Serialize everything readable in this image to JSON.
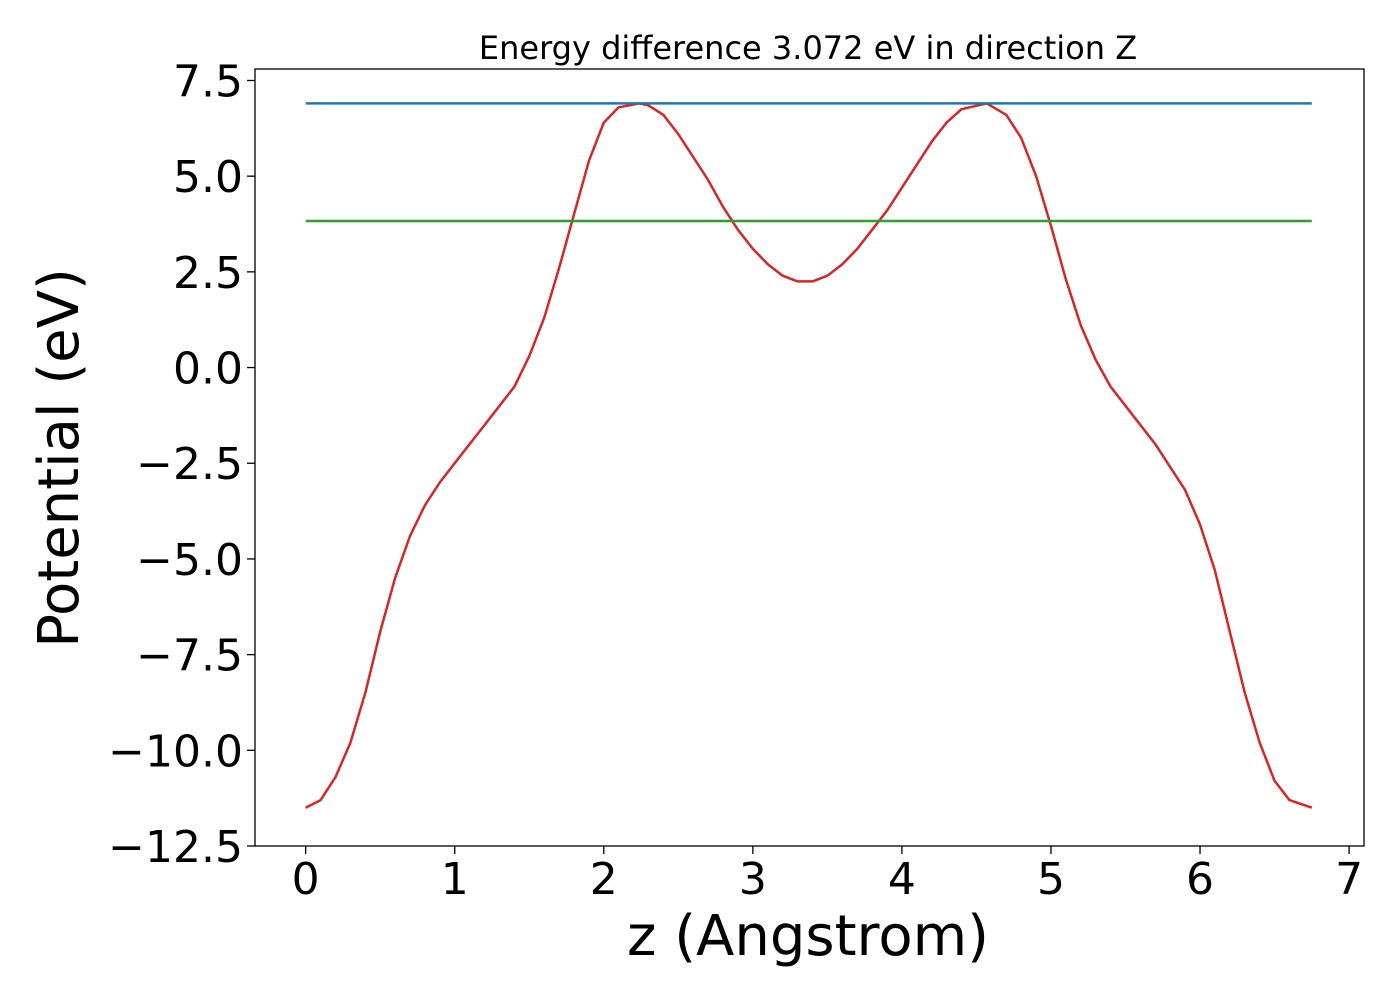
{
  "chart_data": {
    "type": "line",
    "title": "Energy difference 3.072 eV in direction Z",
    "xlabel": "z (Angstrom)",
    "ylabel": "Potential (eV)",
    "xlim": [
      -0.34,
      7.1
    ],
    "ylim": [
      -12.5,
      7.8
    ],
    "xticks": [
      0,
      1,
      2,
      3,
      4,
      5,
      6,
      7
    ],
    "xtick_labels": [
      "0",
      "1",
      "2",
      "3",
      "4",
      "5",
      "6",
      "7"
    ],
    "yticks": [
      7.5,
      5.0,
      2.5,
      0.0,
      -2.5,
      -5.0,
      -7.5,
      -10.0,
      -12.5
    ],
    "ytick_labels": [
      "7.5",
      "5.0",
      "2.5",
      "0.0",
      "−2.5",
      "−5.0",
      "−7.5",
      "−10.0",
      "−12.5"
    ],
    "grid": false,
    "series": [
      {
        "color": "#d62728",
        "x": [
          0.0,
          0.1,
          0.2,
          0.3,
          0.4,
          0.5,
          0.6,
          0.7,
          0.8,
          0.9,
          1.0,
          1.1,
          1.2,
          1.3,
          1.4,
          1.5,
          1.6,
          1.7,
          1.8,
          1.9,
          2.0,
          2.1,
          2.24,
          2.3,
          2.4,
          2.5,
          2.6,
          2.7,
          2.8,
          2.9,
          3.0,
          3.1,
          3.2,
          3.3,
          3.4,
          3.5,
          3.6,
          3.7,
          3.8,
          3.9,
          4.0,
          4.1,
          4.2,
          4.3,
          4.4,
          4.57,
          4.7,
          4.8,
          4.9,
          5.0,
          5.1,
          5.2,
          5.3,
          5.4,
          5.5,
          5.6,
          5.7,
          5.8,
          5.9,
          6.0,
          6.1,
          6.2,
          6.3,
          6.4,
          6.5,
          6.6,
          6.75
        ],
        "y": [
          -11.5,
          -11.3,
          -10.7,
          -9.8,
          -8.5,
          -6.9,
          -5.5,
          -4.4,
          -3.6,
          -3.0,
          -2.5,
          -2.0,
          -1.5,
          -1.0,
          -0.5,
          0.3,
          1.3,
          2.6,
          4.0,
          5.4,
          6.4,
          6.8,
          6.9,
          6.85,
          6.6,
          6.1,
          5.5,
          4.9,
          4.2,
          3.6,
          3.1,
          2.7,
          2.4,
          2.25,
          2.25,
          2.4,
          2.7,
          3.1,
          3.6,
          4.1,
          4.7,
          5.3,
          5.9,
          6.4,
          6.75,
          6.9,
          6.6,
          6.0,
          5.0,
          3.7,
          2.3,
          1.1,
          0.2,
          -0.5,
          -1.0,
          -1.5,
          -2.0,
          -2.6,
          -3.2,
          -4.1,
          -5.3,
          -6.9,
          -8.5,
          -9.8,
          -10.8,
          -11.3,
          -11.5
        ]
      },
      {
        "color": "#1f77b4",
        "x": [
          0.0,
          6.75
        ],
        "y": [
          6.9,
          6.9
        ]
      },
      {
        "color": "#2ca02c",
        "x": [
          0.0,
          6.75
        ],
        "y": [
          3.83,
          3.83
        ]
      }
    ]
  }
}
